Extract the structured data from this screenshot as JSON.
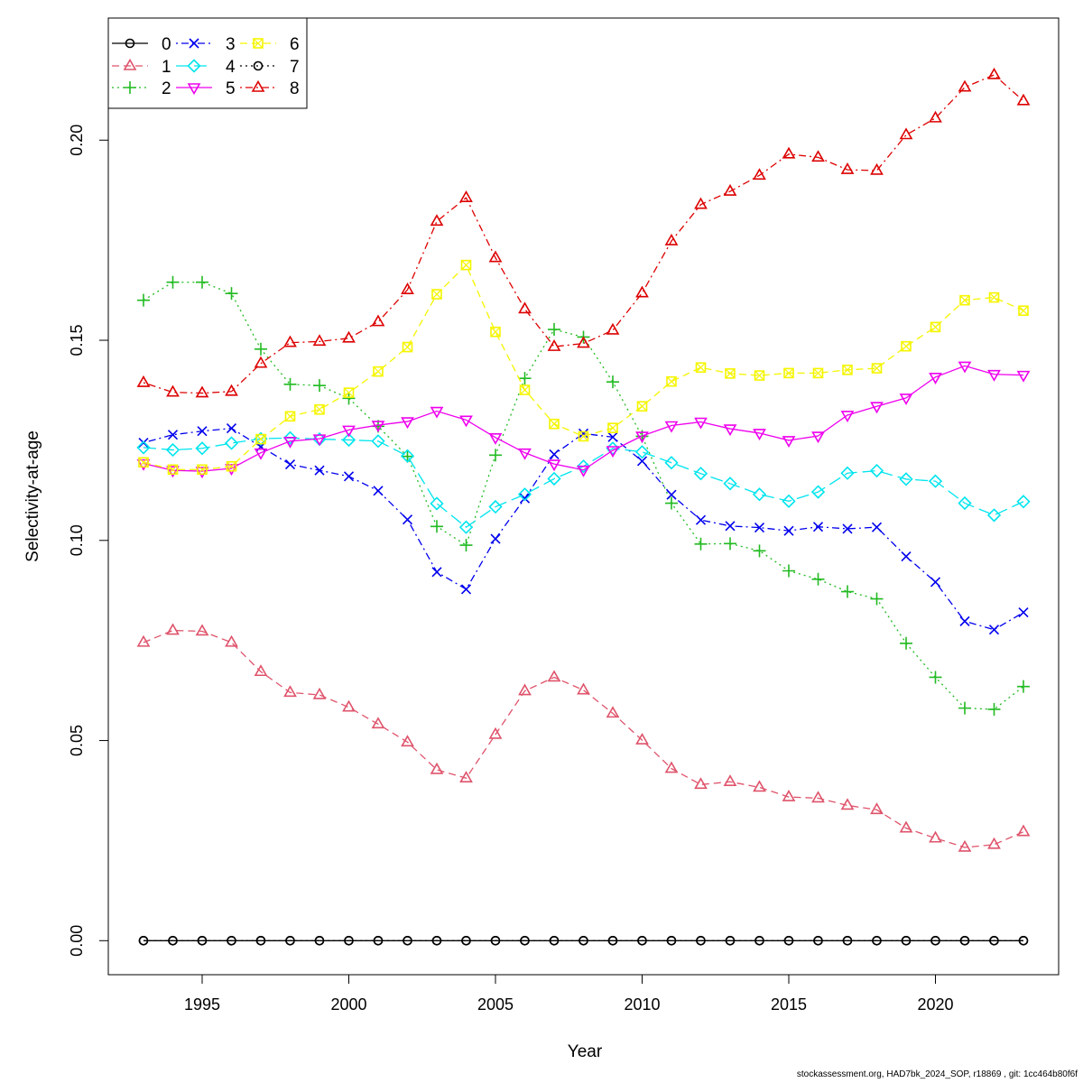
{
  "footer": "stockassessment.org, HAD7bk_2024_SOP, r18869 , git: 1cc464b80f6f",
  "chart_data": {
    "type": "line",
    "title": "",
    "xlabel": "Year",
    "ylabel": "Selectivity-at-age",
    "xlim": [
      1991.8,
      2024.2
    ],
    "ylim": [
      -0.0085,
      0.2305
    ],
    "xticks": [
      1995,
      2000,
      2005,
      2010,
      2015,
      2020
    ],
    "yticks": [
      0.0,
      0.05,
      0.1,
      0.15,
      0.2
    ],
    "ytick_labels": [
      "0.00",
      "0.05",
      "0.10",
      "0.15",
      "0.20"
    ],
    "legend_position": "top-left",
    "x": [
      1993,
      1994,
      1995,
      1996,
      1997,
      1998,
      1999,
      2000,
      2001,
      2002,
      2003,
      2004,
      2005,
      2006,
      2007,
      2008,
      2009,
      2010,
      2011,
      2012,
      2013,
      2014,
      2015,
      2016,
      2017,
      2018,
      2019,
      2020,
      2021,
      2022,
      2023
    ],
    "series": [
      {
        "name": "0",
        "color": "#000000",
        "marker": "circle",
        "dash": "solid",
        "values": [
          0,
          0,
          0,
          0,
          0,
          0,
          0,
          0,
          0,
          0,
          0,
          0,
          0,
          0,
          0,
          0,
          0,
          0,
          0,
          0,
          0,
          0,
          0,
          0,
          0,
          0,
          0,
          0,
          0,
          0,
          0
        ]
      },
      {
        "name": "1",
        "color": "#DF536B",
        "marker": "triangle-up",
        "dash": "dashed",
        "values": [
          0.0745,
          0.0775,
          0.0773,
          0.0745,
          0.0672,
          0.062,
          0.0614,
          0.0583,
          0.0541,
          0.0496,
          0.0427,
          0.0406,
          0.0515,
          0.0624,
          0.0658,
          0.0626,
          0.0568,
          0.0501,
          0.043,
          0.039,
          0.0397,
          0.0383,
          0.0359,
          0.0356,
          0.0338,
          0.0327,
          0.0281,
          0.0256,
          0.0233,
          0.024,
          0.0272
        ]
      },
      {
        "name": "2",
        "color": "#22BB22",
        "marker": "plus",
        "dash": "dotted",
        "values": [
          0.16,
          0.1645,
          0.1645,
          0.1617,
          0.1478,
          0.139,
          0.1387,
          0.1355,
          0.1285,
          0.121,
          0.1035,
          0.0988,
          0.1213,
          0.1405,
          0.1527,
          0.1508,
          0.1396,
          0.126,
          0.1093,
          0.0991,
          0.0992,
          0.0974,
          0.0924,
          0.0903,
          0.0872,
          0.0854,
          0.0743,
          0.0658,
          0.0581,
          0.0578,
          0.0635
        ]
      },
      {
        "name": "3",
        "color": "#0000EE",
        "marker": "cross",
        "dash": "dotdash",
        "values": [
          0.1244,
          0.1264,
          0.1273,
          0.128,
          0.1234,
          0.119,
          0.1175,
          0.116,
          0.1124,
          0.1052,
          0.0921,
          0.0878,
          0.1004,
          0.1105,
          0.1215,
          0.1267,
          0.1258,
          0.1198,
          0.1114,
          0.1051,
          0.1036,
          0.1032,
          0.1024,
          0.1034,
          0.1029,
          0.1033,
          0.096,
          0.0896,
          0.0798,
          0.0777,
          0.082
        ]
      },
      {
        "name": "4",
        "color": "#00E5EE",
        "marker": "diamond",
        "dash": "longdash",
        "values": [
          0.1232,
          0.1226,
          0.123,
          0.1243,
          0.1254,
          0.1256,
          0.1253,
          0.1251,
          0.1248,
          0.1211,
          0.1092,
          0.1033,
          0.1084,
          0.1115,
          0.1154,
          0.1185,
          0.123,
          0.1221,
          0.1194,
          0.1167,
          0.1142,
          0.1115,
          0.1098,
          0.1121,
          0.1168,
          0.1174,
          0.1153,
          0.1148,
          0.1093,
          0.1063,
          0.1097
        ]
      },
      {
        "name": "5",
        "color": "#EE00EE",
        "marker": "triangle-down",
        "dash": "solid",
        "values": [
          0.1192,
          0.1175,
          0.1173,
          0.118,
          0.1219,
          0.1248,
          0.1254,
          0.1276,
          0.1288,
          0.1297,
          0.1323,
          0.1301,
          0.1257,
          0.1219,
          0.1191,
          0.1176,
          0.1225,
          0.1261,
          0.1287,
          0.1296,
          0.1279,
          0.1268,
          0.125,
          0.1261,
          0.1313,
          0.1335,
          0.1356,
          0.1408,
          0.1436,
          0.1415,
          0.1413
        ]
      },
      {
        "name": "6",
        "color": "#F5F500",
        "marker": "square-cross",
        "dash": "dashed",
        "values": [
          0.1195,
          0.1177,
          0.1177,
          0.1185,
          0.1253,
          0.131,
          0.1327,
          0.1369,
          0.1422,
          0.1483,
          0.1615,
          0.1688,
          0.1521,
          0.1376,
          0.1291,
          0.126,
          0.1281,
          0.1335,
          0.1397,
          0.1432,
          0.1417,
          0.1412,
          0.1418,
          0.1418,
          0.1426,
          0.143,
          0.1485,
          0.1533,
          0.16,
          0.1607,
          0.1574
        ]
      },
      {
        "name": "7",
        "color": "#000000",
        "marker": "circle",
        "dash": "dotted",
        "values": [
          0,
          0,
          0,
          0,
          0,
          0,
          0,
          0,
          0,
          0,
          0,
          0,
          0,
          0,
          0,
          0,
          0,
          0,
          0,
          0,
          0,
          0,
          0,
          0,
          0,
          0,
          0,
          0,
          0,
          0,
          0
        ]
      },
      {
        "name": "8",
        "color": "#DD0000",
        "marker": "triangle-up",
        "dash": "dotdash",
        "values": [
          0.1394,
          0.137,
          0.1368,
          0.1372,
          0.1442,
          0.1494,
          0.1497,
          0.1505,
          0.1546,
          0.1626,
          0.1797,
          0.1856,
          0.1706,
          0.1578,
          0.1484,
          0.1492,
          0.1525,
          0.1618,
          0.1748,
          0.1839,
          0.1872,
          0.1912,
          0.1965,
          0.1957,
          0.1926,
          0.1924,
          0.2013,
          0.2055,
          0.2132,
          0.2163,
          0.2098
        ]
      }
    ]
  }
}
